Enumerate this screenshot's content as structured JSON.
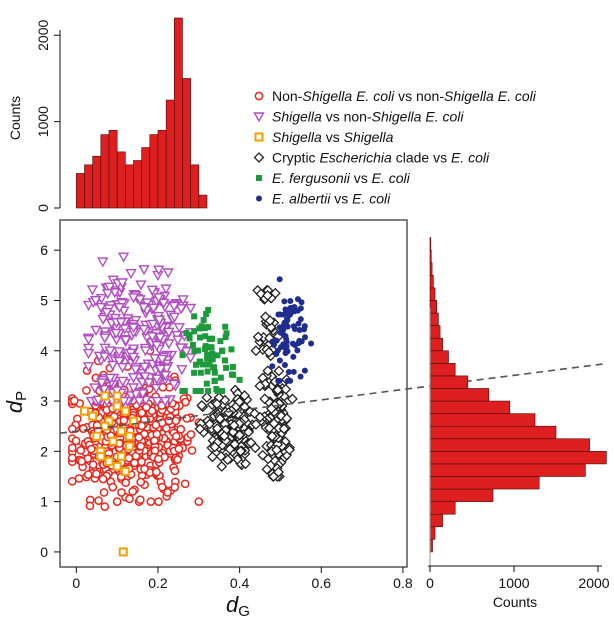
{
  "chart_data": [
    {
      "id": "main-scatter",
      "type": "scatter",
      "xlabel": "d",
      "xlabel_sub": "G",
      "ylabel": "d",
      "ylabel_sub": "P",
      "xlim": [
        -0.04,
        0.81
      ],
      "ylim": [
        -0.3,
        6.6
      ],
      "xticks": [
        0,
        0.2,
        0.4,
        0.6,
        0.8
      ],
      "xtick_labels": [
        "0",
        "0.2",
        "0.4",
        "0.6",
        "0.8"
      ],
      "yticks": [
        0,
        1,
        2,
        3,
        4,
        5,
        6
      ],
      "ytick_labels": [
        "0",
        "1",
        "2",
        "3",
        "4",
        "5",
        "6"
      ],
      "grid": false,
      "legend_position": "top-right (outside plot)",
      "trend_line": {
        "style": "dashed",
        "color": "#555555",
        "x": [
          -0.04,
          0.81
        ],
        "y": [
          2.36,
          3.24
        ]
      },
      "series": [
        {
          "key": "nonshig",
          "legend": [
            {
              "t": "Non-",
              "i": false
            },
            {
              "t": "Shigella",
              "i": true
            },
            {
              "t": " ",
              "i": false
            },
            {
              "t": "E. coli",
              "i": true
            },
            {
              "t": " vs non-",
              "i": false
            },
            {
              "t": "Shigella",
              "i": true
            },
            {
              "t": " ",
              "i": false
            },
            {
              "t": "E. coli",
              "i": true
            }
          ],
          "marker": "open-circle",
          "color": "#e8271e",
          "clusters": [
            {
              "cx": 0.085,
              "cy": 2.3,
              "sx": 0.05,
              "sy": 0.6,
              "xmin": -0.01,
              "xmax": 0.29,
              "ymin": 0.9,
              "ymax": 4.8,
              "n": 260
            },
            {
              "cx": 0.2,
              "cy": 2.2,
              "sx": 0.045,
              "sy": 0.55,
              "xmin": 0.1,
              "xmax": 0.3,
              "ymin": 1.0,
              "ymax": 4.3,
              "n": 200
            }
          ]
        },
        {
          "key": "shig_nonshig",
          "legend": [
            {
              "t": "Shigella",
              "i": true
            },
            {
              "t": " vs non-",
              "i": false
            },
            {
              "t": "Shigella",
              "i": true
            },
            {
              "t": " ",
              "i": false
            },
            {
              "t": "E. coli",
              "i": true
            }
          ],
          "marker": "open-triangle-down",
          "color": "#b04fc0",
          "clusters": [
            {
              "cx": 0.095,
              "cy": 4.2,
              "sx": 0.035,
              "sy": 0.7,
              "xmin": 0.03,
              "xmax": 0.17,
              "ymin": 3.0,
              "ymax": 6.2,
              "n": 140
            },
            {
              "cx": 0.205,
              "cy": 4.3,
              "sx": 0.035,
              "sy": 0.7,
              "xmin": 0.14,
              "xmax": 0.28,
              "ymin": 3.0,
              "ymax": 6.2,
              "n": 140
            }
          ]
        },
        {
          "key": "shig_shig",
          "legend": [
            {
              "t": "Shigella",
              "i": true
            },
            {
              "t": " vs ",
              "i": false
            },
            {
              "t": "Shigella",
              "i": true
            }
          ],
          "marker": "open-square",
          "color": "#f2a200",
          "points": [
            [
              0.02,
              2.8
            ],
            [
              0.05,
              2.3
            ],
            [
              0.06,
              2.0
            ],
            [
              0.07,
              3.1
            ],
            [
              0.08,
              2.6
            ],
            [
              0.09,
              2.2
            ],
            [
              0.1,
              2.9
            ],
            [
              0.1,
              1.7
            ],
            [
              0.11,
              2.4
            ],
            [
              0.12,
              1.6
            ],
            [
              0.13,
              2.1
            ],
            [
              0.14,
              2.6
            ],
            [
              0.06,
              1.9
            ],
            [
              0.1,
              3.1
            ],
            [
              0.12,
              2.8
            ],
            [
              0.08,
              1.8
            ],
            [
              0.04,
              2.7
            ],
            [
              0.07,
              2.5
            ],
            [
              0.11,
              1.9
            ],
            [
              0.13,
              2.3
            ],
            [
              0.115,
              0.0
            ]
          ]
        },
        {
          "key": "cryptic",
          "legend": [
            {
              "t": "Cryptic ",
              "i": false
            },
            {
              "t": "Escherichia",
              "i": true
            },
            {
              "t": " clade vs ",
              "i": false
            },
            {
              "t": "E. coli",
              "i": true
            }
          ],
          "marker": "open-diamond",
          "color": "#222222",
          "clusters": [
            {
              "cx": 0.37,
              "cy": 2.4,
              "sx": 0.03,
              "sy": 0.35,
              "xmin": 0.29,
              "xmax": 0.44,
              "ymin": 1.7,
              "ymax": 3.4,
              "n": 170
            },
            {
              "cx": 0.49,
              "cy": 2.5,
              "sx": 0.015,
              "sy": 0.45,
              "xmin": 0.45,
              "xmax": 0.53,
              "ymin": 1.5,
              "ymax": 3.5,
              "n": 110
            },
            {
              "cx": 0.47,
              "cy": 4.3,
              "sx": 0.015,
              "sy": 0.6,
              "xmin": 0.44,
              "xmax": 0.5,
              "ymin": 3.3,
              "ymax": 5.2,
              "n": 40
            }
          ]
        },
        {
          "key": "ferg",
          "legend": [
            {
              "t": "E. fergusonii",
              "i": true
            },
            {
              "t": " vs ",
              "i": false
            },
            {
              "t": "E. coli",
              "i": true
            }
          ],
          "marker": "filled-square",
          "color": "#1e9a3c",
          "clusters": [
            {
              "cx": 0.33,
              "cy": 3.85,
              "sx": 0.03,
              "sy": 0.4,
              "xmin": 0.26,
              "xmax": 0.4,
              "ymin": 3.2,
              "ymax": 5.1,
              "n": 70
            }
          ]
        },
        {
          "key": "albertii",
          "legend": [
            {
              "t": "E. albertii",
              "i": true
            },
            {
              "t": " vs ",
              "i": false
            },
            {
              "t": "E. coli",
              "i": true
            }
          ],
          "marker": "filled-circle",
          "color": "#1f2d8f",
          "clusters": [
            {
              "cx": 0.52,
              "cy": 4.3,
              "sx": 0.02,
              "sy": 0.5,
              "xmin": 0.48,
              "xmax": 0.58,
              "ymin": 3.4,
              "ymax": 5.6,
              "n": 75
            }
          ]
        }
      ]
    },
    {
      "id": "top-histogram",
      "type": "bar",
      "orientation": "vertical",
      "ylabel": "Counts",
      "ylim": [
        0,
        2200
      ],
      "yticks": [
        0,
        1000,
        2000
      ],
      "ytick_labels": [
        "0",
        "1000",
        "2000"
      ],
      "bin_width": 0.02,
      "bins_start": [
        0,
        0.02,
        0.04,
        0.06,
        0.08,
        0.1,
        0.12,
        0.14,
        0.16,
        0.18,
        0.2,
        0.22,
        0.24,
        0.26,
        0.28,
        0.3
      ],
      "values": [
        400,
        500,
        600,
        850,
        900,
        650,
        500,
        550,
        700,
        850,
        900,
        1250,
        2200,
        1500,
        500,
        150
      ],
      "color": "#dd1f1f"
    },
    {
      "id": "right-histogram",
      "type": "bar",
      "orientation": "horizontal",
      "xlabel": "Counts",
      "xlim": [
        0,
        2000
      ],
      "xticks": [
        0,
        1000,
        2000
      ],
      "xtick_labels": [
        "0",
        "1000",
        "2000"
      ],
      "bin_width": 0.25,
      "bins_start": [
        0,
        0.25,
        0.5,
        0.75,
        1.0,
        1.25,
        1.5,
        1.75,
        2.0,
        2.25,
        2.5,
        2.75,
        3.0,
        3.25,
        3.5,
        3.75,
        4.0,
        4.25,
        4.5,
        4.75,
        5.0,
        5.25,
        5.5,
        5.75,
        6.0
      ],
      "values": [
        30,
        60,
        150,
        300,
        750,
        1300,
        1850,
        2100,
        1900,
        1500,
        1250,
        950,
        700,
        450,
        300,
        220,
        150,
        120,
        100,
        80,
        60,
        40,
        25,
        15,
        10
      ],
      "color": "#dd1f1f"
    }
  ]
}
